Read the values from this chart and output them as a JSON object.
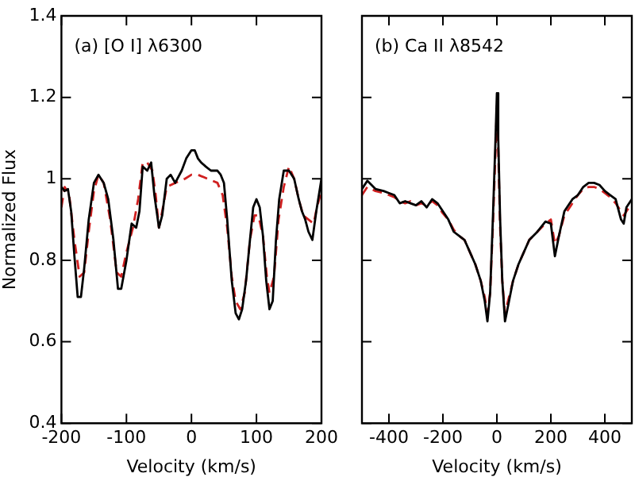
{
  "chart_data": [
    {
      "type": "line",
      "title": "(a) [O I] λ6300",
      "xlabel": "Velocity (km/s)",
      "ylabel": "Normalized Flux",
      "xlim": [
        -200,
        200
      ],
      "ylim": [
        0.4,
        1.4
      ],
      "xticks": [
        -200,
        -100,
        0,
        100,
        200
      ],
      "yticks": [
        0.4,
        0.6,
        0.8,
        1.0,
        1.2,
        1.4
      ],
      "grid": false,
      "legend": false,
      "marker": "none",
      "series": [
        {
          "color": "#000000",
          "line_style": "solid",
          "x": [
            -200,
            -195,
            -190,
            -185,
            -180,
            -175,
            -170,
            -165,
            -158,
            -150,
            -143,
            -135,
            -128,
            -120,
            -113,
            -108,
            -100,
            -92,
            -85,
            -80,
            -75,
            -68,
            -62,
            -57,
            -50,
            -45,
            -38,
            -32,
            -25,
            -15,
            -8,
            0,
            5,
            10,
            15,
            22,
            30,
            40,
            45,
            50,
            55,
            62,
            68,
            73,
            78,
            84,
            90,
            95,
            100,
            105,
            110,
            115,
            120,
            125,
            130,
            135,
            142,
            150,
            158,
            165,
            170,
            175,
            180,
            186,
            192,
            200
          ],
          "values": [
            0.98,
            0.97,
            0.975,
            0.92,
            0.81,
            0.71,
            0.71,
            0.78,
            0.9,
            0.99,
            1.01,
            0.99,
            0.95,
            0.85,
            0.73,
            0.73,
            0.8,
            0.89,
            0.88,
            0.92,
            1.03,
            1.02,
            1.04,
            0.96,
            0.88,
            0.91,
            1.0,
            1.01,
            0.99,
            1.02,
            1.05,
            1.07,
            1.07,
            1.05,
            1.04,
            1.03,
            1.02,
            1.02,
            1.01,
            0.99,
            0.9,
            0.75,
            0.67,
            0.655,
            0.68,
            0.75,
            0.85,
            0.93,
            0.95,
            0.93,
            0.86,
            0.75,
            0.68,
            0.7,
            0.85,
            0.95,
            1.02,
            1.02,
            1.0,
            0.95,
            0.92,
            0.9,
            0.87,
            0.85,
            0.92,
            1.0
          ]
        },
        {
          "color": "#d02020",
          "line_style": "dashed",
          "x": [
            -200,
            -195,
            -188,
            -180,
            -172,
            -165,
            -158,
            -150,
            -143,
            -135,
            -125,
            -115,
            -108,
            -100,
            -90,
            -82,
            -75,
            -68,
            -60,
            -55,
            -50,
            -45,
            -38,
            -25,
            -10,
            0,
            10,
            25,
            40,
            48,
            55,
            62,
            68,
            75,
            82,
            90,
            97,
            103,
            110,
            116,
            120,
            127,
            134,
            142,
            150,
            158,
            165,
            172,
            180,
            188,
            193,
            200
          ],
          "values": [
            0.93,
            0.98,
            0.96,
            0.85,
            0.76,
            0.77,
            0.87,
            0.97,
            1.01,
            0.99,
            0.9,
            0.77,
            0.76,
            0.82,
            0.88,
            0.95,
            1.04,
            1.04,
            1.02,
            0.96,
            0.88,
            0.92,
            0.98,
            0.99,
            1.0,
            1.01,
            1.01,
            1.0,
            0.99,
            0.96,
            0.88,
            0.76,
            0.7,
            0.68,
            0.72,
            0.85,
            0.91,
            0.91,
            0.86,
            0.76,
            0.72,
            0.76,
            0.9,
            0.98,
            1.03,
            1.0,
            0.95,
            0.91,
            0.9,
            0.89,
            0.93,
            0.97
          ]
        }
      ]
    },
    {
      "type": "line",
      "title": "(b) Ca II λ8542",
      "xlabel": "Velocity (km/s)",
      "xlim": [
        -500,
        500
      ],
      "ylim": [
        0.4,
        1.4
      ],
      "xticks": [
        -400,
        -200,
        0,
        200,
        400
      ],
      "yticks": [
        0.4,
        0.6,
        0.8,
        1.0,
        1.2,
        1.4
      ],
      "tick_labels": "x",
      "grid": false,
      "legend": false,
      "marker": "none",
      "series": [
        {
          "color": "#000000",
          "line_style": "solid",
          "x": [
            -500,
            -480,
            -450,
            -420,
            -400,
            -380,
            -360,
            -340,
            -320,
            -300,
            -280,
            -260,
            -240,
            -220,
            -200,
            -180,
            -160,
            -140,
            -120,
            -100,
            -80,
            -60,
            -45,
            -35,
            -25,
            -15,
            -5,
            0,
            5,
            12,
            20,
            30,
            45,
            60,
            80,
            100,
            120,
            150,
            180,
            200,
            215,
            230,
            250,
            280,
            300,
            320,
            340,
            360,
            380,
            400,
            420,
            440,
            460,
            470,
            480,
            500
          ],
          "values": [
            0.975,
            0.995,
            0.975,
            0.97,
            0.965,
            0.96,
            0.94,
            0.945,
            0.94,
            0.935,
            0.945,
            0.93,
            0.95,
            0.94,
            0.92,
            0.9,
            0.87,
            0.86,
            0.85,
            0.82,
            0.79,
            0.75,
            0.7,
            0.65,
            0.72,
            0.9,
            1.1,
            1.21,
            1.1,
            0.9,
            0.75,
            0.65,
            0.7,
            0.75,
            0.79,
            0.82,
            0.85,
            0.87,
            0.895,
            0.89,
            0.81,
            0.86,
            0.92,
            0.95,
            0.96,
            0.98,
            0.99,
            0.99,
            0.985,
            0.97,
            0.96,
            0.95,
            0.9,
            0.89,
            0.93,
            0.95
          ]
        },
        {
          "color": "#d02020",
          "line_style": "dashed",
          "x": [
            -500,
            -480,
            -450,
            -420,
            -400,
            -380,
            -360,
            -340,
            -320,
            -300,
            -280,
            -260,
            -240,
            -220,
            -200,
            -180,
            -160,
            -140,
            -120,
            -100,
            -80,
            -60,
            -45,
            -35,
            -25,
            -15,
            -5,
            0,
            5,
            12,
            20,
            30,
            45,
            60,
            80,
            100,
            120,
            150,
            180,
            200,
            215,
            230,
            250,
            280,
            300,
            320,
            340,
            360,
            380,
            400,
            420,
            440,
            460,
            470,
            480,
            500
          ],
          "values": [
            0.96,
            0.98,
            0.97,
            0.965,
            0.96,
            0.955,
            0.945,
            0.94,
            0.945,
            0.935,
            0.94,
            0.935,
            0.945,
            0.935,
            0.915,
            0.9,
            0.875,
            0.86,
            0.85,
            0.82,
            0.79,
            0.75,
            0.71,
            0.67,
            0.72,
            0.88,
            1.07,
            1.18,
            1.07,
            0.88,
            0.75,
            0.67,
            0.71,
            0.75,
            0.79,
            0.82,
            0.85,
            0.87,
            0.89,
            0.9,
            0.84,
            0.86,
            0.91,
            0.94,
            0.96,
            0.975,
            0.98,
            0.98,
            0.975,
            0.965,
            0.955,
            0.94,
            0.92,
            0.91,
            0.92,
            0.94
          ]
        }
      ]
    }
  ]
}
